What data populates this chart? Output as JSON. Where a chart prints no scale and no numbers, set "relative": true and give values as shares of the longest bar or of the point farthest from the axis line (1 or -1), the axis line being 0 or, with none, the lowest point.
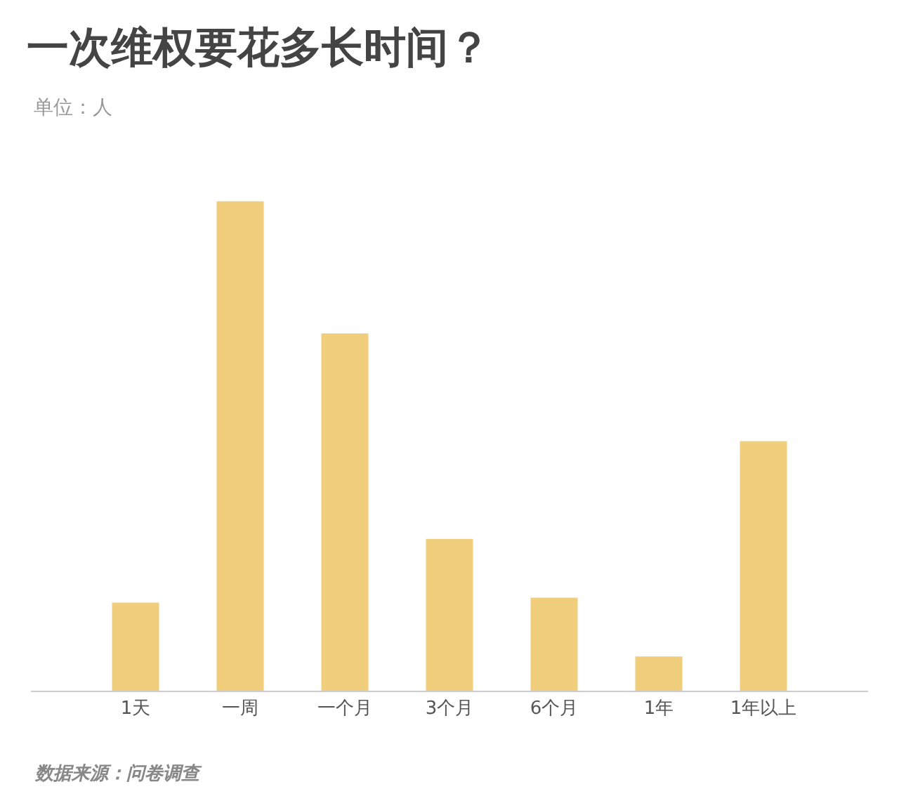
{
  "chart_data": {
    "type": "bar",
    "title": "一次维权要花多长时间？",
    "subtitle": "单位：人",
    "categories": [
      "1天",
      "一周",
      "一个月",
      "3个月",
      "6个月",
      "1年",
      "1年以上"
    ],
    "values": [
      0.18,
      1,
      0.73,
      0.31,
      0.19,
      0.07,
      0.51
    ],
    "color": "#f0c96e",
    "relative": true,
    "annotations": [
      "数据来源：问卷调查"
    ]
  }
}
